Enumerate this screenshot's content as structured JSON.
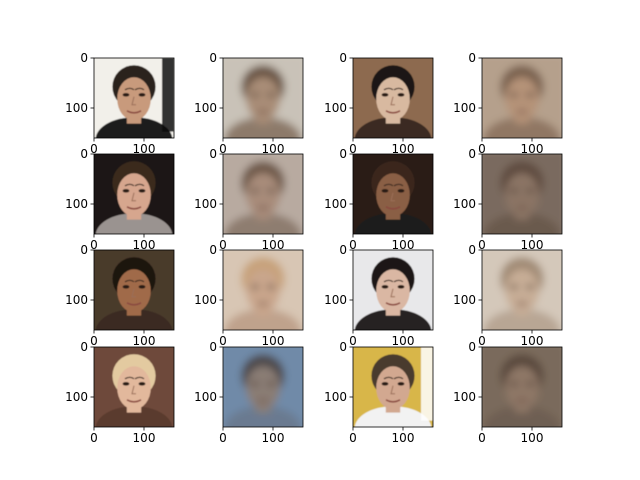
{
  "chart_data": {
    "type": "image-grid",
    "title": "",
    "rows": 4,
    "cols": 4,
    "xlim": [
      0,
      160
    ],
    "ylim": [
      160,
      0
    ],
    "x_ticks": [
      0,
      100
    ],
    "y_ticks": [
      0,
      100
    ],
    "x_tick_labels": [
      "0",
      "100"
    ],
    "y_tick_labels": [
      "0",
      "100"
    ],
    "panels": [
      {
        "kind": "face-photo",
        "bg": "#f2f0ea",
        "skin": "#c89a7c",
        "hair": "#2a211b",
        "shirt": "#1a1a1a",
        "extra": "#111111"
      },
      {
        "kind": "reconstruction",
        "bg": "#c9c2b8",
        "skin": "#a98d77",
        "hair": "#6a5444",
        "shirt": "#8d7a6a"
      },
      {
        "kind": "face-photo",
        "bg": "#8d6a4f",
        "skin": "#d8b9a0",
        "hair": "#1c1612",
        "shirt": "#3a2a20"
      },
      {
        "kind": "reconstruction",
        "bg": "#b5a08c",
        "skin": "#b59378",
        "hair": "#7a6250",
        "shirt": "#907763"
      },
      {
        "kind": "face-photo",
        "bg": "#1a1612",
        "skin": "#d6a68e",
        "hair": "#3a2a1e",
        "shirt": "#9a9390"
      },
      {
        "kind": "reconstruction",
        "bg": "#b8aaa0",
        "skin": "#a88c7a",
        "hair": "#6e5848",
        "shirt": "#8e7d70"
      },
      {
        "kind": "face-photo",
        "bg": "#2b1e19",
        "skin": "#8a5e44",
        "hair": "#3a261c",
        "shirt": "#1c1c1c"
      },
      {
        "kind": "reconstruction",
        "bg": "#7a6a5e",
        "skin": "#8b7565",
        "hair": "#5e4c40",
        "shirt": "#6b5a4e"
      },
      {
        "kind": "face-photo",
        "bg": "#4a3a2c",
        "skin": "#a06a4a",
        "hair": "#1f1611",
        "shirt": "#3a2c22"
      },
      {
        "kind": "reconstruction",
        "bg": "#d8c6b4",
        "skin": "#c9a68c",
        "hair": "#c7a27a",
        "shirt": "#bfa28c"
      },
      {
        "kind": "face-photo",
        "bg": "#e8e8ea",
        "skin": "#dab7a3",
        "hair": "#1a1515",
        "shirt": "#262222"
      },
      {
        "kind": "reconstruction",
        "bg": "#d4c8ba",
        "skin": "#c7ad96",
        "hair": "#a08a74",
        "shirt": "#b8a694"
      },
      {
        "kind": "face-photo",
        "bg": "#6e4a3a",
        "skin": "#e2b89c",
        "hair": "#e3caa0",
        "shirt": "#5a3a2e"
      },
      {
        "kind": "reconstruction",
        "bg": "#6f8aa8",
        "skin": "#8a7d74",
        "hair": "#4e4a4c",
        "shirt": "#6a7a90"
      },
      {
        "kind": "face-photo",
        "bg": "#d8b64a",
        "skin": "#d2a890",
        "hair": "#4a3a2e",
        "shirt": "#f2f2f2",
        "extra": "#ffffff"
      },
      {
        "kind": "reconstruction",
        "bg": "#7a6a5c",
        "skin": "#8e7766",
        "hair": "#5a4a3e",
        "shirt": "#6e5e52"
      }
    ]
  }
}
